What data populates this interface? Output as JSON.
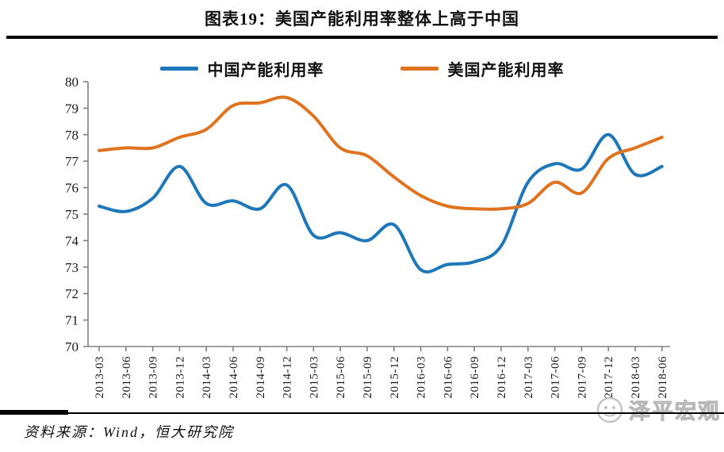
{
  "header": {
    "title": "图表19：美国产能利用率整体上高于中国"
  },
  "chart_data": {
    "type": "line",
    "title": "图表19：美国产能利用率整体上高于中国",
    "categories": [
      "2013-03",
      "2013-06",
      "2013-09",
      "2013-12",
      "2014-03",
      "2014-06",
      "2014-09",
      "2014-12",
      "2015-03",
      "2015-06",
      "2015-09",
      "2015-12",
      "2016-03",
      "2016-06",
      "2016-09",
      "2016-12",
      "2017-03",
      "2017-06",
      "2017-09",
      "2017-12",
      "2018-03",
      "2018-06"
    ],
    "series": [
      {
        "name": "中国产能利用率",
        "color": "#1E77B8",
        "values": [
          75.3,
          75.1,
          75.6,
          76.8,
          75.4,
          75.5,
          75.2,
          76.1,
          74.2,
          74.3,
          74.0,
          74.6,
          72.9,
          73.1,
          73.2,
          73.8,
          76.2,
          76.9,
          76.7,
          78.0,
          76.5,
          76.8
        ]
      },
      {
        "name": "美国产能利用率",
        "color": "#E0731F",
        "values": [
          77.4,
          77.5,
          77.5,
          77.9,
          78.2,
          79.1,
          79.2,
          79.4,
          78.7,
          77.5,
          77.2,
          76.4,
          75.7,
          75.3,
          75.2,
          75.2,
          75.4,
          76.2,
          75.8,
          77.1,
          77.5,
          77.9
        ]
      }
    ],
    "xlabel": "",
    "ylabel": "",
    "ylim": [
      70,
      80
    ],
    "y_tick_step": 1,
    "grid": false,
    "legend_position": "top",
    "axis_color": "#808080",
    "x_label_rotation": 90
  },
  "footer": {
    "source": "资料来源：Wind，恒大研究院",
    "watermark": "泽平宏观"
  }
}
